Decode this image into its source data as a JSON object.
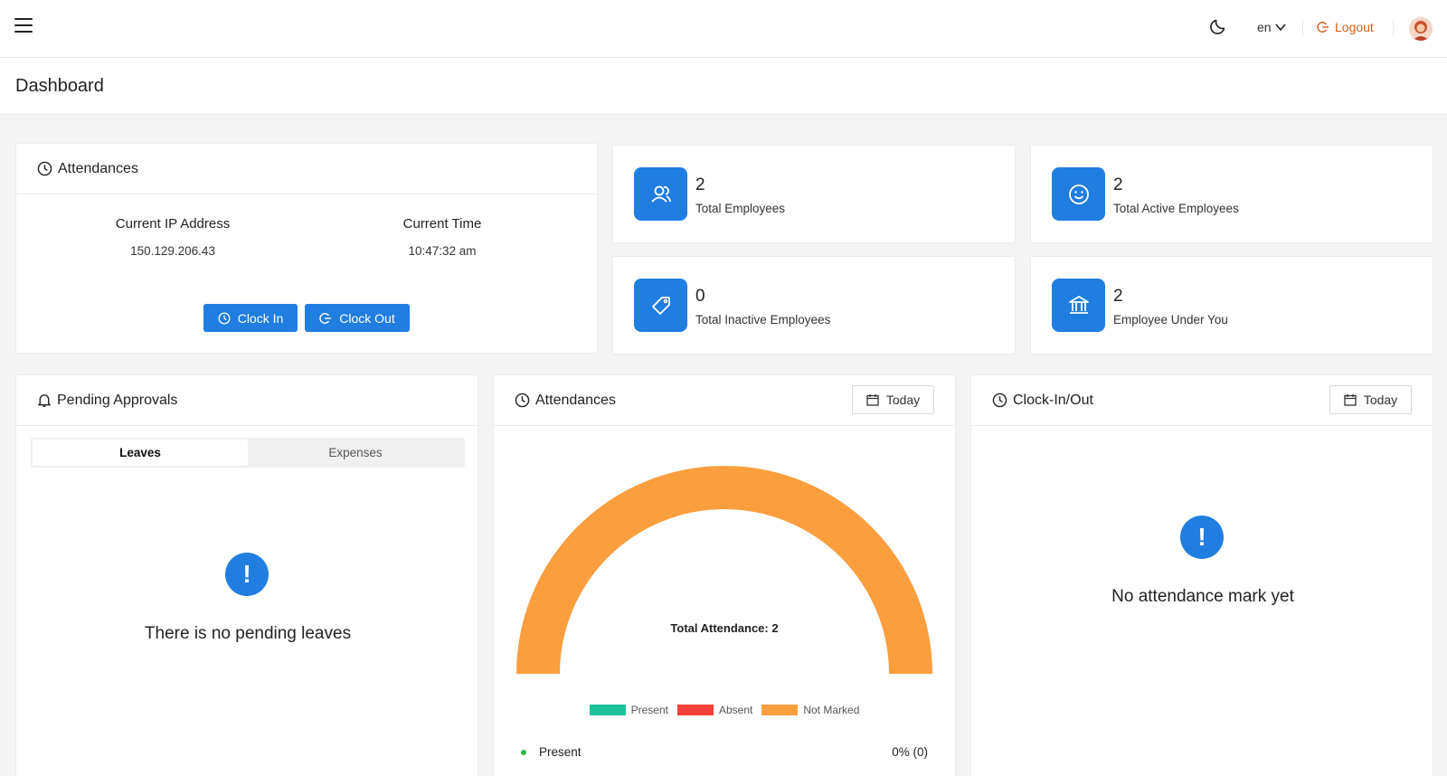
{
  "header": {
    "language": "en",
    "logout_label": "Logout"
  },
  "page": {
    "title": "Dashboard"
  },
  "attendance_card": {
    "title": "Attendances",
    "ip_label": "Current IP Address",
    "ip_value": "150.129.206.43",
    "time_label": "Current Time",
    "time_value": "10:47:32 am",
    "clock_in_label": "Clock In",
    "clock_out_label": "Clock Out"
  },
  "stats": [
    {
      "value": "2",
      "label": "Total Employees",
      "icon": "users-icon"
    },
    {
      "value": "2",
      "label": "Total Active Employees",
      "icon": "smile-icon"
    },
    {
      "value": "0",
      "label": "Total Inactive Employees",
      "icon": "tag-icon"
    },
    {
      "value": "2",
      "label": "Employee Under You",
      "icon": "bank-icon"
    }
  ],
  "pending": {
    "title": "Pending Approvals",
    "tabs": [
      "Leaves",
      "Expenses"
    ],
    "active_tab": "Leaves",
    "empty_text": "There is no pending leaves"
  },
  "attendance_chart": {
    "title": "Attendances",
    "filter_label": "Today",
    "center_label": "Total Attendance: 2",
    "legend": [
      {
        "label": "Present",
        "color": "#1fc19a"
      },
      {
        "label": "Absent",
        "color": "#f2413a"
      },
      {
        "label": "Not Marked",
        "color": "#fb9e3e"
      }
    ],
    "present_row_label": "Present",
    "present_row_value": "0% (0)"
  },
  "chart_data": {
    "type": "pie",
    "categories": [
      "Present",
      "Absent",
      "Not Marked"
    ],
    "values": [
      0,
      0,
      2
    ],
    "title": "",
    "annotation": "Total Attendance: 2"
  },
  "clockinout": {
    "title": "Clock-In/Out",
    "filter_label": "Today",
    "empty_text": "No attendance mark yet"
  }
}
